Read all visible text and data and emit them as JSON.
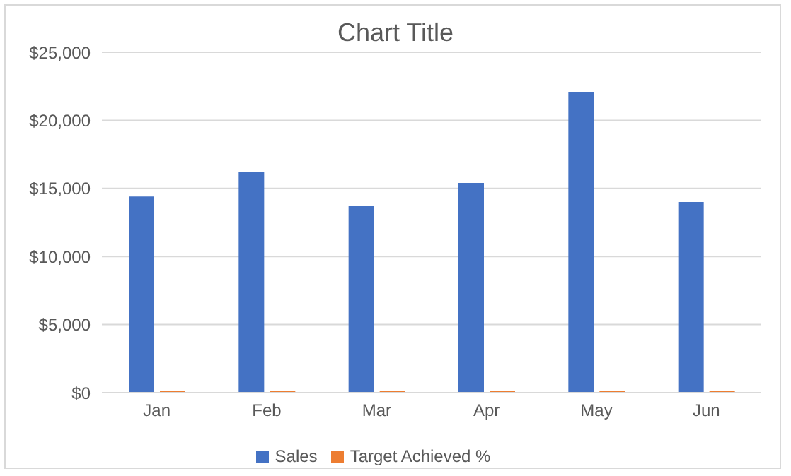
{
  "chart_data": {
    "type": "bar",
    "title": "Chart Title",
    "categories": [
      "Jan",
      "Feb",
      "Mar",
      "Apr",
      "May",
      "Jun"
    ],
    "series": [
      {
        "name": "Sales",
        "color": "#4472c4",
        "values": [
          14400,
          16200,
          13700,
          15400,
          22100,
          14000
        ]
      },
      {
        "name": "Target Achieved %",
        "color": "#ed7d31",
        "values": [
          100,
          100,
          100,
          100,
          100,
          100
        ]
      }
    ],
    "ylim": [
      0,
      25000
    ],
    "yticks": [
      {
        "value": 0,
        "label": "$0"
      },
      {
        "value": 5000,
        "label": "$5,000"
      },
      {
        "value": 10000,
        "label": "$10,000"
      },
      {
        "value": 15000,
        "label": "$15,000"
      },
      {
        "value": 20000,
        "label": "$20,000"
      },
      {
        "value": 25000,
        "label": "$25,000"
      }
    ],
    "grid": "y",
    "legend": "bottom"
  }
}
